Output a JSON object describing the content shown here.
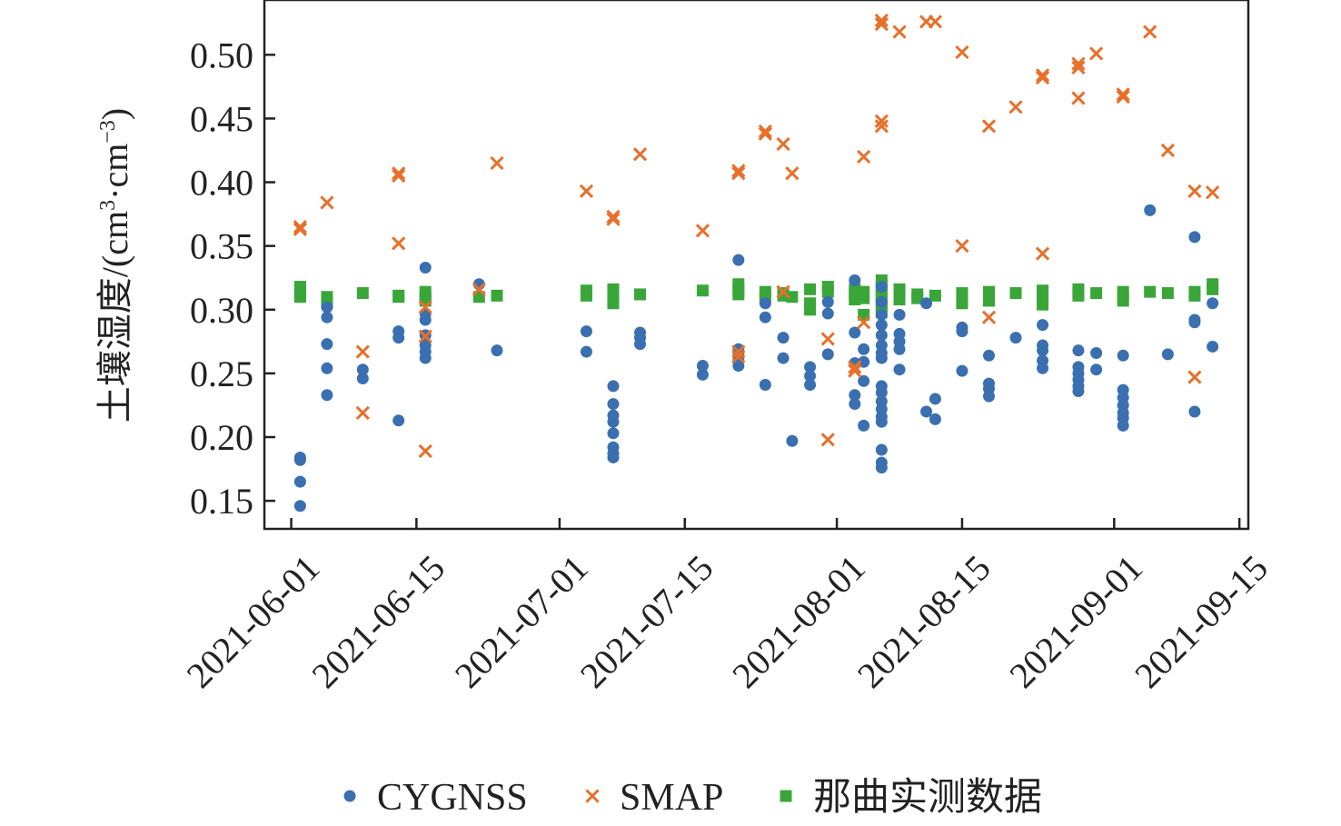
{
  "chart_data": {
    "type": "scatter",
    "title": "",
    "xlabel": "",
    "ylabel": "土壤湿度/(cm³·cm⁻³)",
    "ylabel_parts": {
      "prefix": "土壤湿度/(cm",
      "sup1": "3",
      "mid": "·cm",
      "sup2": "−3",
      "suffix": ")"
    },
    "x_is_date": true,
    "xlim": [
      "2021-05-29",
      "2021-09-16"
    ],
    "ylim": [
      0.128,
      0.543
    ],
    "x_ticks": [
      "2021-06-01",
      "2021-06-15",
      "2021-07-01",
      "2021-07-15",
      "2021-08-01",
      "2021-08-15",
      "2021-09-01",
      "2021-09-15"
    ],
    "y_ticks": [
      0.15,
      0.2,
      0.25,
      0.3,
      0.35,
      0.4,
      0.45,
      0.5
    ],
    "y_tick_labels": [
      "0.15",
      "0.20",
      "0.25",
      "0.30",
      "0.35",
      "0.40",
      "0.45",
      "0.50"
    ],
    "grid": false,
    "legend": "bottom",
    "series": [
      {
        "name": "CYGNSS",
        "marker": "circle",
        "color": "#3a6fb0",
        "points": [
          [
            "2021-06-02",
            0.184
          ],
          [
            "2021-06-02",
            0.182
          ],
          [
            "2021-06-02",
            0.165
          ],
          [
            "2021-06-02",
            0.146
          ],
          [
            "2021-06-05",
            0.302
          ],
          [
            "2021-06-05",
            0.294
          ],
          [
            "2021-06-05",
            0.273
          ],
          [
            "2021-06-05",
            0.254
          ],
          [
            "2021-06-05",
            0.233
          ],
          [
            "2021-06-09",
            0.253
          ],
          [
            "2021-06-09",
            0.246
          ],
          [
            "2021-06-13",
            0.283
          ],
          [
            "2021-06-13",
            0.278
          ],
          [
            "2021-06-13",
            0.213
          ],
          [
            "2021-06-16",
            0.333
          ],
          [
            "2021-06-16",
            0.297
          ],
          [
            "2021-06-16",
            0.292
          ],
          [
            "2021-06-16",
            0.28
          ],
          [
            "2021-06-16",
            0.272
          ],
          [
            "2021-06-16",
            0.267
          ],
          [
            "2021-06-16",
            0.262
          ],
          [
            "2021-06-22",
            0.32
          ],
          [
            "2021-06-24",
            0.268
          ],
          [
            "2021-07-04",
            0.283
          ],
          [
            "2021-07-04",
            0.267
          ],
          [
            "2021-07-07",
            0.24
          ],
          [
            "2021-07-07",
            0.226
          ],
          [
            "2021-07-07",
            0.217
          ],
          [
            "2021-07-07",
            0.212
          ],
          [
            "2021-07-07",
            0.203
          ],
          [
            "2021-07-07",
            0.192
          ],
          [
            "2021-07-07",
            0.187
          ],
          [
            "2021-07-07",
            0.184
          ],
          [
            "2021-07-10",
            0.282
          ],
          [
            "2021-07-10",
            0.278
          ],
          [
            "2021-07-10",
            0.273
          ],
          [
            "2021-07-17",
            0.256
          ],
          [
            "2021-07-17",
            0.249
          ],
          [
            "2021-07-21",
            0.339
          ],
          [
            "2021-07-21",
            0.269
          ],
          [
            "2021-07-21",
            0.265
          ],
          [
            "2021-07-21",
            0.26
          ],
          [
            "2021-07-21",
            0.256
          ],
          [
            "2021-07-24",
            0.305
          ],
          [
            "2021-07-24",
            0.294
          ],
          [
            "2021-07-24",
            0.241
          ],
          [
            "2021-07-26",
            0.278
          ],
          [
            "2021-07-26",
            0.262
          ],
          [
            "2021-07-27",
            0.197
          ],
          [
            "2021-07-29",
            0.255
          ],
          [
            "2021-07-29",
            0.248
          ],
          [
            "2021-07-29",
            0.241
          ],
          [
            "2021-07-31",
            0.306
          ],
          [
            "2021-07-31",
            0.297
          ],
          [
            "2021-07-31",
            0.265
          ],
          [
            "2021-08-03",
            0.323
          ],
          [
            "2021-08-03",
            0.282
          ],
          [
            "2021-08-03",
            0.258
          ],
          [
            "2021-08-03",
            0.233
          ],
          [
            "2021-08-03",
            0.226
          ],
          [
            "2021-08-04",
            0.269
          ],
          [
            "2021-08-04",
            0.259
          ],
          [
            "2021-08-04",
            0.244
          ],
          [
            "2021-08-04",
            0.209
          ],
          [
            "2021-08-06",
            0.318
          ],
          [
            "2021-08-06",
            0.306
          ],
          [
            "2021-08-06",
            0.296
          ],
          [
            "2021-08-06",
            0.288
          ],
          [
            "2021-08-06",
            0.28
          ],
          [
            "2021-08-06",
            0.272
          ],
          [
            "2021-08-06",
            0.266
          ],
          [
            "2021-08-06",
            0.262
          ],
          [
            "2021-08-06",
            0.24
          ],
          [
            "2021-08-06",
            0.235
          ],
          [
            "2021-08-06",
            0.228
          ],
          [
            "2021-08-06",
            0.222
          ],
          [
            "2021-08-06",
            0.216
          ],
          [
            "2021-08-06",
            0.212
          ],
          [
            "2021-08-06",
            0.19
          ],
          [
            "2021-08-06",
            0.18
          ],
          [
            "2021-08-06",
            0.176
          ],
          [
            "2021-08-08",
            0.296
          ],
          [
            "2021-08-08",
            0.281
          ],
          [
            "2021-08-08",
            0.275
          ],
          [
            "2021-08-08",
            0.269
          ],
          [
            "2021-08-08",
            0.253
          ],
          [
            "2021-08-11",
            0.305
          ],
          [
            "2021-08-11",
            0.22
          ],
          [
            "2021-08-12",
            0.23
          ],
          [
            "2021-08-12",
            0.214
          ],
          [
            "2021-08-15",
            0.286
          ],
          [
            "2021-08-15",
            0.283
          ],
          [
            "2021-08-15",
            0.252
          ],
          [
            "2021-08-18",
            0.264
          ],
          [
            "2021-08-18",
            0.242
          ],
          [
            "2021-08-18",
            0.238
          ],
          [
            "2021-08-18",
            0.232
          ],
          [
            "2021-08-21",
            0.278
          ],
          [
            "2021-08-24",
            0.288
          ],
          [
            "2021-08-24",
            0.272
          ],
          [
            "2021-08-24",
            0.268
          ],
          [
            "2021-08-24",
            0.26
          ],
          [
            "2021-08-24",
            0.254
          ],
          [
            "2021-08-28",
            0.268
          ],
          [
            "2021-08-28",
            0.255
          ],
          [
            "2021-08-28",
            0.25
          ],
          [
            "2021-08-28",
            0.245
          ],
          [
            "2021-08-28",
            0.24
          ],
          [
            "2021-08-28",
            0.236
          ],
          [
            "2021-08-30",
            0.266
          ],
          [
            "2021-08-30",
            0.253
          ],
          [
            "2021-09-02",
            0.264
          ],
          [
            "2021-09-02",
            0.237
          ],
          [
            "2021-09-02",
            0.231
          ],
          [
            "2021-09-02",
            0.225
          ],
          [
            "2021-09-02",
            0.219
          ],
          [
            "2021-09-02",
            0.215
          ],
          [
            "2021-09-02",
            0.209
          ],
          [
            "2021-09-05",
            0.378
          ],
          [
            "2021-09-07",
            0.265
          ],
          [
            "2021-09-10",
            0.357
          ],
          [
            "2021-09-10",
            0.292
          ],
          [
            "2021-09-10",
            0.29
          ],
          [
            "2021-09-10",
            0.22
          ],
          [
            "2021-09-12",
            0.305
          ],
          [
            "2021-09-12",
            0.271
          ]
        ]
      },
      {
        "name": "SMAP",
        "marker": "x",
        "color": "#e8702a",
        "points": [
          [
            "2021-06-02",
            0.365
          ],
          [
            "2021-06-02",
            0.363
          ],
          [
            "2021-06-05",
            0.384
          ],
          [
            "2021-06-09",
            0.267
          ],
          [
            "2021-06-09",
            0.219
          ],
          [
            "2021-06-13",
            0.407
          ],
          [
            "2021-06-13",
            0.405
          ],
          [
            "2021-06-13",
            0.352
          ],
          [
            "2021-06-16",
            0.302
          ],
          [
            "2021-06-16",
            0.279
          ],
          [
            "2021-06-16",
            0.189
          ],
          [
            "2021-06-22",
            0.316
          ],
          [
            "2021-06-24",
            0.415
          ],
          [
            "2021-07-04",
            0.393
          ],
          [
            "2021-07-07",
            0.373
          ],
          [
            "2021-07-07",
            0.371
          ],
          [
            "2021-07-10",
            0.422
          ],
          [
            "2021-07-17",
            0.362
          ],
          [
            "2021-07-21",
            0.409
          ],
          [
            "2021-07-21",
            0.407
          ],
          [
            "2021-07-21",
            0.267
          ],
          [
            "2021-07-21",
            0.263
          ],
          [
            "2021-07-24",
            0.44
          ],
          [
            "2021-07-24",
            0.438
          ],
          [
            "2021-07-26",
            0.43
          ],
          [
            "2021-07-26",
            0.314
          ],
          [
            "2021-07-27",
            0.407
          ],
          [
            "2021-07-31",
            0.277
          ],
          [
            "2021-07-31",
            0.198
          ],
          [
            "2021-08-03",
            0.255
          ],
          [
            "2021-08-03",
            0.252
          ],
          [
            "2021-08-04",
            0.42
          ],
          [
            "2021-08-04",
            0.29
          ],
          [
            "2021-08-06",
            0.527
          ],
          [
            "2021-08-06",
            0.524
          ],
          [
            "2021-08-06",
            0.448
          ],
          [
            "2021-08-06",
            0.444
          ],
          [
            "2021-08-08",
            0.518
          ],
          [
            "2021-08-11",
            0.526
          ],
          [
            "2021-08-12",
            0.526
          ],
          [
            "2021-08-15",
            0.502
          ],
          [
            "2021-08-15",
            0.35
          ],
          [
            "2021-08-18",
            0.444
          ],
          [
            "2021-08-18",
            0.294
          ],
          [
            "2021-08-21",
            0.459
          ],
          [
            "2021-08-24",
            0.484
          ],
          [
            "2021-08-24",
            0.482
          ],
          [
            "2021-08-24",
            0.344
          ],
          [
            "2021-08-28",
            0.493
          ],
          [
            "2021-08-28",
            0.49
          ],
          [
            "2021-08-28",
            0.466
          ],
          [
            "2021-08-30",
            0.501
          ],
          [
            "2021-09-02",
            0.469
          ],
          [
            "2021-09-02",
            0.467
          ],
          [
            "2021-09-05",
            0.518
          ],
          [
            "2021-09-07",
            0.425
          ],
          [
            "2021-09-10",
            0.393
          ],
          [
            "2021-09-10",
            0.247
          ],
          [
            "2021-09-12",
            0.392
          ]
        ]
      },
      {
        "name": "那曲实测数据",
        "marker": "square",
        "color": "#3aa63a",
        "points": [
          [
            "2021-06-02",
            0.318
          ],
          [
            "2021-06-02",
            0.315
          ],
          [
            "2021-06-02",
            0.312
          ],
          [
            "2021-06-02",
            0.31
          ],
          [
            "2021-06-05",
            0.31
          ],
          [
            "2021-06-05",
            0.306
          ],
          [
            "2021-06-09",
            0.313
          ],
          [
            "2021-06-13",
            0.311
          ],
          [
            "2021-06-13",
            0.31
          ],
          [
            "2021-06-16",
            0.314
          ],
          [
            "2021-06-16",
            0.31
          ],
          [
            "2021-06-16",
            0.307
          ],
          [
            "2021-06-22",
            0.31
          ],
          [
            "2021-06-24",
            0.311
          ],
          [
            "2021-07-04",
            0.315
          ],
          [
            "2021-07-04",
            0.311
          ],
          [
            "2021-07-07",
            0.316
          ],
          [
            "2021-07-07",
            0.312
          ],
          [
            "2021-07-07",
            0.308
          ],
          [
            "2021-07-07",
            0.305
          ],
          [
            "2021-07-10",
            0.312
          ],
          [
            "2021-07-17",
            0.315
          ],
          [
            "2021-07-21",
            0.32
          ],
          [
            "2021-07-21",
            0.316
          ],
          [
            "2021-07-21",
            0.312
          ],
          [
            "2021-07-24",
            0.314
          ],
          [
            "2021-07-24",
            0.31
          ],
          [
            "2021-07-26",
            0.313
          ],
          [
            "2021-07-26",
            0.311
          ],
          [
            "2021-07-27",
            0.31
          ],
          [
            "2021-07-29",
            0.316
          ],
          [
            "2021-07-29",
            0.305
          ],
          [
            "2021-07-29",
            0.3
          ],
          [
            "2021-07-31",
            0.318
          ],
          [
            "2021-07-31",
            0.314
          ],
          [
            "2021-08-03",
            0.316
          ],
          [
            "2021-08-03",
            0.312
          ],
          [
            "2021-08-03",
            0.308
          ],
          [
            "2021-08-04",
            0.314
          ],
          [
            "2021-08-04",
            0.309
          ],
          [
            "2021-08-04",
            0.296
          ],
          [
            "2021-08-06",
            0.323
          ],
          [
            "2021-08-06",
            0.319
          ],
          [
            "2021-08-06",
            0.315
          ],
          [
            "2021-08-06",
            0.311
          ],
          [
            "2021-08-06",
            0.307
          ],
          [
            "2021-08-06",
            0.303
          ],
          [
            "2021-08-06",
            0.298
          ],
          [
            "2021-08-08",
            0.316
          ],
          [
            "2021-08-08",
            0.312
          ],
          [
            "2021-08-08",
            0.308
          ],
          [
            "2021-08-10",
            0.312
          ],
          [
            "2021-08-10",
            0.309
          ],
          [
            "2021-08-12",
            0.311
          ],
          [
            "2021-08-15",
            0.313
          ],
          [
            "2021-08-15",
            0.309
          ],
          [
            "2021-08-15",
            0.305
          ],
          [
            "2021-08-18",
            0.314
          ],
          [
            "2021-08-18",
            0.31
          ],
          [
            "2021-08-18",
            0.307
          ],
          [
            "2021-08-21",
            0.313
          ],
          [
            "2021-08-24",
            0.315
          ],
          [
            "2021-08-24",
            0.311
          ],
          [
            "2021-08-24",
            0.307
          ],
          [
            "2021-08-24",
            0.304
          ],
          [
            "2021-08-28",
            0.316
          ],
          [
            "2021-08-28",
            0.313
          ],
          [
            "2021-08-28",
            0.311
          ],
          [
            "2021-08-30",
            0.313
          ],
          [
            "2021-09-02",
            0.314
          ],
          [
            "2021-09-02",
            0.311
          ],
          [
            "2021-09-02",
            0.307
          ],
          [
            "2021-09-05",
            0.314
          ],
          [
            "2021-09-07",
            0.313
          ],
          [
            "2021-09-10",
            0.314
          ],
          [
            "2021-09-10",
            0.311
          ],
          [
            "2021-09-12",
            0.32
          ],
          [
            "2021-09-12",
            0.316
          ]
        ]
      }
    ]
  }
}
